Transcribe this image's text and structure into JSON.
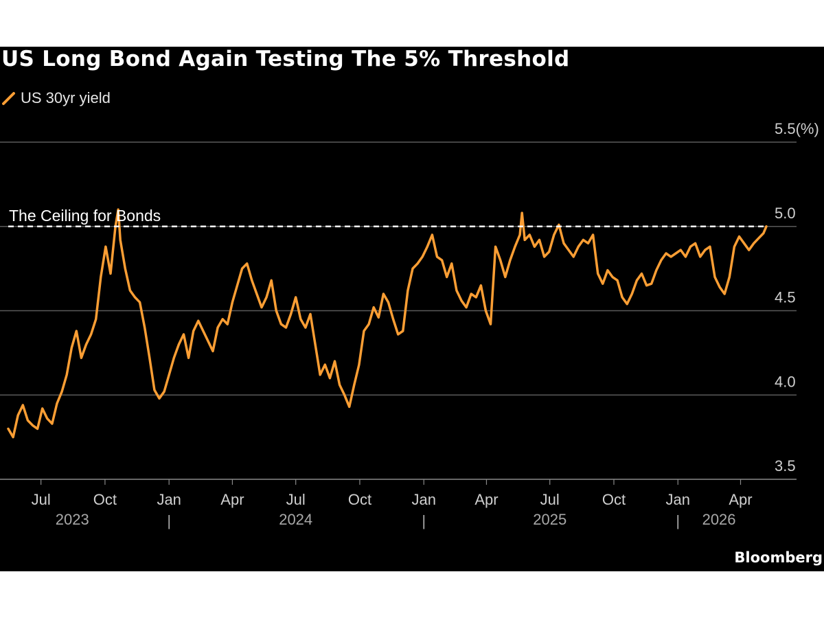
{
  "chart_data": {
    "type": "line",
    "title": "US Long Bond Again Testing The 5% Threshold",
    "legend": [
      "US 30yr yield"
    ],
    "series": [
      {
        "name": "US 30yr yield",
        "color": "#fb9e34",
        "points": [
          [
            "2023-05-15",
            3.8
          ],
          [
            "2023-05-22",
            3.75
          ],
          [
            "2023-05-29",
            3.88
          ],
          [
            "2023-06-05",
            3.94
          ],
          [
            "2023-06-12",
            3.85
          ],
          [
            "2023-06-19",
            3.82
          ],
          [
            "2023-06-26",
            3.8
          ],
          [
            "2023-07-03",
            3.92
          ],
          [
            "2023-07-10",
            3.86
          ],
          [
            "2023-07-17",
            3.83
          ],
          [
            "2023-07-24",
            3.95
          ],
          [
            "2023-07-31",
            4.02
          ],
          [
            "2023-08-07",
            4.12
          ],
          [
            "2023-08-14",
            4.28
          ],
          [
            "2023-08-21",
            4.38
          ],
          [
            "2023-08-28",
            4.22
          ],
          [
            "2023-09-04",
            4.3
          ],
          [
            "2023-09-11",
            4.36
          ],
          [
            "2023-09-18",
            4.45
          ],
          [
            "2023-09-25",
            4.7
          ],
          [
            "2023-10-02",
            4.88
          ],
          [
            "2023-10-09",
            4.72
          ],
          [
            "2023-10-16",
            5.0
          ],
          [
            "2023-10-20",
            5.1
          ],
          [
            "2023-10-23",
            4.92
          ],
          [
            "2023-10-30",
            4.75
          ],
          [
            "2023-11-06",
            4.62
          ],
          [
            "2023-11-13",
            4.58
          ],
          [
            "2023-11-20",
            4.55
          ],
          [
            "2023-11-27",
            4.4
          ],
          [
            "2023-12-04",
            4.22
          ],
          [
            "2023-12-11",
            4.03
          ],
          [
            "2023-12-18",
            3.98
          ],
          [
            "2023-12-25",
            4.02
          ],
          [
            "2024-01-01",
            4.12
          ],
          [
            "2024-01-08",
            4.22
          ],
          [
            "2024-01-15",
            4.3
          ],
          [
            "2024-01-22",
            4.36
          ],
          [
            "2024-01-29",
            4.22
          ],
          [
            "2024-02-05",
            4.38
          ],
          [
            "2024-02-12",
            4.44
          ],
          [
            "2024-02-19",
            4.38
          ],
          [
            "2024-02-26",
            4.32
          ],
          [
            "2024-03-04",
            4.26
          ],
          [
            "2024-03-11",
            4.4
          ],
          [
            "2024-03-18",
            4.45
          ],
          [
            "2024-03-25",
            4.42
          ],
          [
            "2024-04-01",
            4.55
          ],
          [
            "2024-04-08",
            4.65
          ],
          [
            "2024-04-15",
            4.75
          ],
          [
            "2024-04-22",
            4.78
          ],
          [
            "2024-04-29",
            4.68
          ],
          [
            "2024-05-06",
            4.6
          ],
          [
            "2024-05-13",
            4.52
          ],
          [
            "2024-05-20",
            4.58
          ],
          [
            "2024-05-27",
            4.68
          ],
          [
            "2024-06-03",
            4.5
          ],
          [
            "2024-06-10",
            4.42
          ],
          [
            "2024-06-17",
            4.4
          ],
          [
            "2024-06-24",
            4.48
          ],
          [
            "2024-07-01",
            4.58
          ],
          [
            "2024-07-08",
            4.45
          ],
          [
            "2024-07-15",
            4.4
          ],
          [
            "2024-07-22",
            4.48
          ],
          [
            "2024-07-29",
            4.3
          ],
          [
            "2024-08-05",
            4.12
          ],
          [
            "2024-08-12",
            4.18
          ],
          [
            "2024-08-19",
            4.1
          ],
          [
            "2024-08-26",
            4.2
          ],
          [
            "2024-09-02",
            4.06
          ],
          [
            "2024-09-09",
            4.0
          ],
          [
            "2024-09-16",
            3.93
          ],
          [
            "2024-09-23",
            4.06
          ],
          [
            "2024-09-30",
            4.18
          ],
          [
            "2024-10-07",
            4.38
          ],
          [
            "2024-10-14",
            4.42
          ],
          [
            "2024-10-21",
            4.52
          ],
          [
            "2024-10-28",
            4.46
          ],
          [
            "2024-11-04",
            4.6
          ],
          [
            "2024-11-11",
            4.55
          ],
          [
            "2024-11-18",
            4.45
          ],
          [
            "2024-11-25",
            4.36
          ],
          [
            "2024-12-02",
            4.38
          ],
          [
            "2024-12-09",
            4.62
          ],
          [
            "2024-12-16",
            4.75
          ],
          [
            "2024-12-23",
            4.78
          ],
          [
            "2024-12-30",
            4.82
          ],
          [
            "2025-01-06",
            4.88
          ],
          [
            "2025-01-13",
            4.95
          ],
          [
            "2025-01-20",
            4.82
          ],
          [
            "2025-01-27",
            4.8
          ],
          [
            "2025-02-03",
            4.7
          ],
          [
            "2025-02-10",
            4.78
          ],
          [
            "2025-02-17",
            4.62
          ],
          [
            "2025-02-24",
            4.56
          ],
          [
            "2025-03-03",
            4.52
          ],
          [
            "2025-03-10",
            4.6
          ],
          [
            "2025-03-17",
            4.58
          ],
          [
            "2025-03-24",
            4.65
          ],
          [
            "2025-03-31",
            4.5
          ],
          [
            "2025-04-07",
            4.42
          ],
          [
            "2025-04-14",
            4.88
          ],
          [
            "2025-04-21",
            4.8
          ],
          [
            "2025-04-28",
            4.7
          ],
          [
            "2025-05-05",
            4.8
          ],
          [
            "2025-05-12",
            4.88
          ],
          [
            "2025-05-19",
            4.95
          ],
          [
            "2025-05-22",
            5.08
          ],
          [
            "2025-05-26",
            4.92
          ],
          [
            "2025-06-02",
            4.95
          ],
          [
            "2025-06-09",
            4.88
          ],
          [
            "2025-06-16",
            4.92
          ],
          [
            "2025-06-23",
            4.82
          ],
          [
            "2025-06-30",
            4.85
          ],
          [
            "2025-07-07",
            4.95
          ],
          [
            "2025-07-14",
            5.01
          ],
          [
            "2025-07-21",
            4.9
          ],
          [
            "2025-07-28",
            4.86
          ],
          [
            "2025-08-04",
            4.82
          ],
          [
            "2025-08-11",
            4.88
          ],
          [
            "2025-08-18",
            4.92
          ],
          [
            "2025-08-25",
            4.9
          ],
          [
            "2025-09-01",
            4.95
          ],
          [
            "2025-09-08",
            4.72
          ],
          [
            "2025-09-15",
            4.66
          ],
          [
            "2025-09-22",
            4.74
          ],
          [
            "2025-09-29",
            4.7
          ],
          [
            "2025-10-06",
            4.68
          ],
          [
            "2025-10-13",
            4.58
          ],
          [
            "2025-10-20",
            4.54
          ],
          [
            "2025-10-27",
            4.6
          ],
          [
            "2025-11-03",
            4.68
          ],
          [
            "2025-11-10",
            4.72
          ],
          [
            "2025-11-17",
            4.65
          ],
          [
            "2025-11-24",
            4.66
          ],
          [
            "2025-12-01",
            4.74
          ],
          [
            "2025-12-08",
            4.8
          ],
          [
            "2025-12-15",
            4.84
          ],
          [
            "2025-12-22",
            4.82
          ],
          [
            "2025-12-29",
            4.84
          ],
          [
            "2026-01-05",
            4.86
          ],
          [
            "2026-01-12",
            4.82
          ],
          [
            "2026-01-19",
            4.88
          ],
          [
            "2026-01-26",
            4.9
          ],
          [
            "2026-02-02",
            4.82
          ],
          [
            "2026-02-09",
            4.86
          ],
          [
            "2026-02-16",
            4.88
          ],
          [
            "2026-02-23",
            4.7
          ],
          [
            "2026-03-02",
            4.64
          ],
          [
            "2026-03-09",
            4.6
          ],
          [
            "2026-03-16",
            4.7
          ],
          [
            "2026-03-23",
            4.88
          ],
          [
            "2026-03-30",
            4.94
          ],
          [
            "2026-04-06",
            4.9
          ],
          [
            "2026-04-13",
            4.86
          ],
          [
            "2026-04-20",
            4.9
          ],
          [
            "2026-04-27",
            4.93
          ],
          [
            "2026-05-04",
            4.96
          ],
          [
            "2026-05-08",
            5.0
          ]
        ]
      }
    ],
    "x_range": [
      "2023-05-15",
      "2026-05-31"
    ],
    "ylim": [
      3.5,
      5.5
    ],
    "y_ticks": [
      {
        "value": 3.5,
        "label": "3.5"
      },
      {
        "value": 4.0,
        "label": "4.0"
      },
      {
        "value": 4.5,
        "label": "4.5"
      },
      {
        "value": 5.0,
        "label": "5.0"
      },
      {
        "value": 5.5,
        "label": "5.5(%)"
      }
    ],
    "x_ticks": [
      {
        "date": "2023-07-01",
        "label": "Jul"
      },
      {
        "date": "2023-10-01",
        "label": "Oct"
      },
      {
        "date": "2024-01-01",
        "label": "Jan"
      },
      {
        "date": "2024-04-01",
        "label": "Apr"
      },
      {
        "date": "2024-07-01",
        "label": "Jul"
      },
      {
        "date": "2024-10-01",
        "label": "Oct"
      },
      {
        "date": "2025-01-01",
        "label": "Jan"
      },
      {
        "date": "2025-04-01",
        "label": "Apr"
      },
      {
        "date": "2025-07-01",
        "label": "Jul"
      },
      {
        "date": "2025-10-01",
        "label": "Oct"
      },
      {
        "date": "2026-01-01",
        "label": "Jan"
      },
      {
        "date": "2026-04-01",
        "label": "Apr"
      }
    ],
    "year_labels": [
      {
        "date": "2023-08-15",
        "label": "2023"
      },
      {
        "date": "2024-07-01",
        "label": "2024"
      },
      {
        "date": "2025-07-01",
        "label": "2025"
      },
      {
        "date": "2026-03-01",
        "label": "2026"
      }
    ],
    "year_separators": [
      "2024-01-01",
      "2025-01-01",
      "2026-01-01"
    ],
    "year_separator_glyph": "|",
    "reference_line": {
      "value": 5.0,
      "label": "The Ceiling for Bonds",
      "style": "dashed",
      "color": "#ffffff"
    },
    "grid": true,
    "gridline_color": "#5a5a5a",
    "tick_label_color": "#cfcfcf",
    "year_label_color": "#a8a8a8",
    "background": "#000000",
    "legend_position": "top-left",
    "y_axis_side": "right"
  },
  "source": "Bloomberg"
}
